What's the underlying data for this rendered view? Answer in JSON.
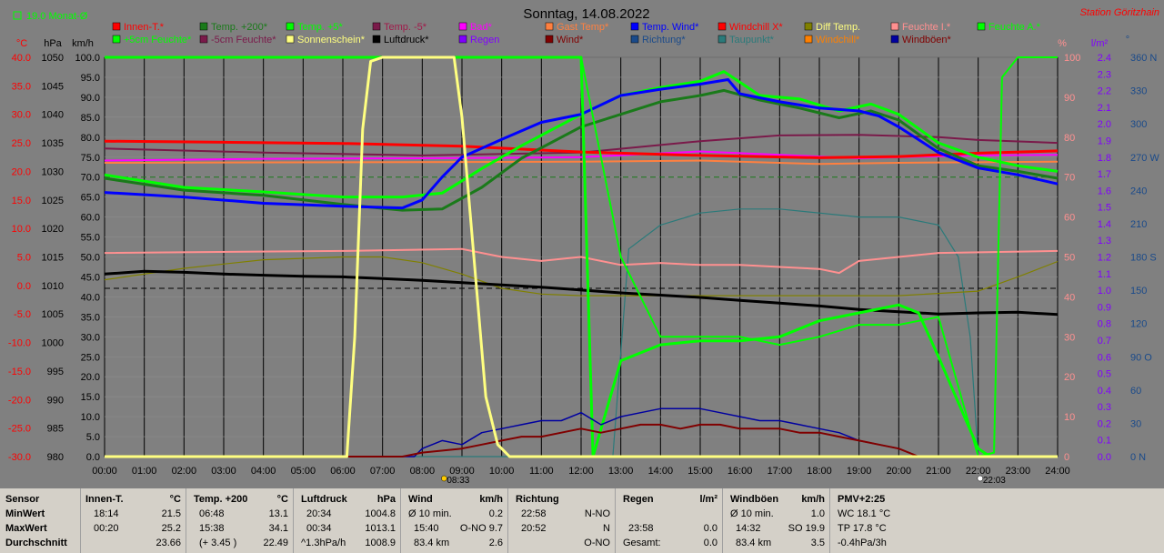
{
  "header": {
    "title": "Sonntag, 14.08.2022",
    "station": "Station Göritzhain",
    "monthly": "19.0 Monat-Ø"
  },
  "colors": {
    "bg": "#808080",
    "innen": "#ff0000",
    "temp200": "#1a7a1a",
    "temp5": "#00ff00",
    "tempm5": "#7a1a4a",
    "bad": "#ff00ff",
    "gast": "#ff8040",
    "tempwind": "#0000ff",
    "windchillx": "#ff0000",
    "diff": "#808000",
    "feuchtei": "#ff9090",
    "feuchtea": "#00ff00",
    "feuchte5": "#00ff00",
    "feuchtem5": "#7a1a4a",
    "sonne": "#ffff80",
    "luftdruck": "#000000",
    "regen": "#8000ff",
    "wind": "#800000",
    "richtung": "#1a4a8a",
    "taupunkt": "#2a7a7a",
    "windchill": "#ff8000",
    "windboeen": "#0000a0"
  },
  "legend": [
    [
      "Innen-T.*",
      "Temp. +200*",
      "Temp. +5*",
      "Temp. -5*",
      "Bad*",
      "Gast Temp*",
      "Temp. Wind*",
      "Windchill X*",
      "Diff Temp.",
      "Feuchte I.*",
      "Feuchte A.*"
    ],
    [
      "+5cm Feuchte*",
      "-5cm Feuchte*",
      "Sonnenschein*",
      "Luftdruck*",
      "Regen",
      "Wind*",
      "Richtung*",
      "Taupunkt*",
      "Windchill*",
      "Windböen*"
    ]
  ],
  "axes": {
    "units_left": [
      "°C",
      "hPa",
      "km/h"
    ],
    "units_right": [
      "%",
      "l/m²",
      "°"
    ],
    "temp": [
      "40.0",
      "35.0",
      "30.0",
      "25.0",
      "20.0",
      "15.0",
      "10.0",
      "5.0",
      "0.0",
      "-5.0",
      "-10.0",
      "-15.0",
      "-20.0",
      "-25.0",
      "-30.0"
    ],
    "hpa": [
      "1050",
      "1045",
      "1040",
      "1035",
      "1030",
      "1025",
      "1020",
      "1015",
      "1010",
      "1005",
      "1000",
      "995",
      "990",
      "985",
      "980"
    ],
    "kmh": [
      "100.0",
      "95.0",
      "90.0",
      "85.0",
      "80.0",
      "75.0",
      "70.0",
      "65.0",
      "60.0",
      "55.0",
      "50.0",
      "45.0",
      "40.0",
      "35.0",
      "30.0",
      "25.0",
      "20.0",
      "15.0",
      "10.0",
      "5.0",
      "0.0"
    ],
    "pct": [
      "100",
      "90",
      "80",
      "70",
      "60",
      "50",
      "40",
      "30",
      "20",
      "10",
      "0"
    ],
    "rain": [
      "2.4",
      "2.3",
      "2.2",
      "2.1",
      "2.0",
      "1.9",
      "1.8",
      "1.7",
      "1.6",
      "1.5",
      "1.4",
      "1.3",
      "1.2",
      "1.1",
      "1.0",
      "0.9",
      "0.8",
      "0.7",
      "0.6",
      "0.5",
      "0.4",
      "0.3",
      "0.2",
      "0.1",
      "0.0"
    ],
    "deg": [
      "360 N",
      "330",
      "300",
      "270 W",
      "240",
      "210",
      "180 S",
      "150",
      "120",
      "90 O",
      "60",
      "30",
      "0 N"
    ],
    "time": [
      "00:00",
      "01:00",
      "02:00",
      "03:00",
      "04:00",
      "05:00",
      "06:00",
      "07:00",
      "08:00",
      "09:00",
      "10:00",
      "11:00",
      "12:00",
      "13:00",
      "14:00",
      "15:00",
      "16:00",
      "17:00",
      "18:00",
      "19:00",
      "20:00",
      "21:00",
      "22:00",
      "23:00",
      "24:00"
    ],
    "sunrise": "08:33",
    "sunset": "22:03"
  },
  "chart_data": {
    "type": "line",
    "title": "Sonntag, 14.08.2022",
    "x_unit": "hours",
    "xlim": [
      0,
      24
    ],
    "ylim_kmh": [
      0,
      100
    ],
    "ylim_temp": [
      -30,
      40
    ],
    "ylim_hpa": [
      980,
      1050
    ],
    "ylim_pct": [
      0,
      100
    ],
    "series": [
      {
        "name": "Innen-T.*",
        "axis": "temp",
        "x": [
          0,
          3,
          6,
          9,
          12,
          15,
          18,
          20,
          22,
          24
        ],
        "values": [
          25.3,
          25.1,
          24.9,
          24.4,
          23.4,
          22.8,
          22.4,
          22.6,
          23.2,
          23.6
        ]
      },
      {
        "name": "Temp. +200*",
        "axis": "temp",
        "x": [
          0,
          2,
          4,
          6,
          7.5,
          8.5,
          9.5,
          10.5,
          12,
          13,
          14,
          15,
          15.6,
          16.5,
          17.5,
          18.5,
          19.3,
          20,
          21,
          22,
          23,
          24
        ],
        "values": [
          18.8,
          16.7,
          15.8,
          14.2,
          13.2,
          13.4,
          17.2,
          22.3,
          27.8,
          30.0,
          32.2,
          33.3,
          34.2,
          32.5,
          31.1,
          29.4,
          30.6,
          29.0,
          24.0,
          21.0,
          20.0,
          18.8
        ]
      },
      {
        "name": "Temp. +5*",
        "axis": "temp",
        "x": [
          0,
          2,
          4,
          6,
          7.5,
          8.5,
          9.5,
          10.5,
          12,
          13,
          14,
          15,
          15.6,
          16.5,
          17.5,
          18.5,
          19.3,
          20,
          21,
          22,
          23,
          24
        ],
        "values": [
          19.4,
          17.2,
          16.4,
          15.5,
          15.5,
          16.2,
          20.5,
          24.5,
          30.0,
          33.3,
          34.7,
          35.8,
          37.5,
          33.3,
          32.7,
          30.6,
          31.8,
          30.0,
          25.0,
          22.5,
          21.0,
          20.0
        ]
      },
      {
        "name": "Temp. -5*",
        "axis": "temp",
        "x": [
          0,
          4,
          8,
          12,
          15,
          17,
          19,
          21,
          22,
          24
        ],
        "values": [
          24.0,
          23.3,
          22.8,
          23.3,
          25.3,
          26.3,
          26.4,
          26.0,
          25.5,
          25.0
        ]
      },
      {
        "name": "Bad*",
        "axis": "temp",
        "x": [
          0,
          4,
          8,
          12,
          15,
          17,
          19,
          20,
          22,
          24
        ],
        "values": [
          21.9,
          22.2,
          22.3,
          22.5,
          23.5,
          22.9,
          22.3,
          22.5,
          22.8,
          22.9
        ]
      },
      {
        "name": "Gast Temp*",
        "axis": "temp",
        "x": [
          0,
          6,
          12,
          15,
          18,
          20,
          22,
          24
        ],
        "values": [
          21.5,
          21.6,
          21.7,
          21.9,
          21.3,
          21.5,
          21.6,
          21.7
        ]
      },
      {
        "name": "Temp. Wind*",
        "axis": "temp",
        "x": [
          0,
          2,
          4,
          6,
          7.5,
          8,
          8.5,
          9,
          10,
          11,
          12,
          13,
          14,
          15,
          15.7,
          16,
          17,
          18,
          19,
          19.5,
          20,
          21,
          22,
          23,
          24
        ],
        "values": [
          16.3,
          15.5,
          14.4,
          13.9,
          13.6,
          15.0,
          19.0,
          22.5,
          25.6,
          28.6,
          30.0,
          33.3,
          34.4,
          35.3,
          36.1,
          33.6,
          32.2,
          31.1,
          30.6,
          29.7,
          27.8,
          23.3,
          20.6,
          19.4,
          17.8
        ]
      },
      {
        "name": "Diff Temp.",
        "axis": "temp",
        "x": [
          0,
          2,
          4,
          6,
          7,
          8,
          9,
          10,
          11,
          12,
          14,
          16,
          18,
          20,
          22,
          23,
          24
        ],
        "values": [
          1.0,
          3.0,
          4.5,
          5.0,
          5.0,
          4.0,
          2.0,
          -0.5,
          -1.5,
          -1.8,
          -1.8,
          -1.8,
          -1.8,
          -1.8,
          -1.0,
          1.5,
          4.2
        ]
      },
      {
        "name": "Feuchte I.*",
        "axis": "pct",
        "x": [
          0,
          6,
          9,
          10,
          11,
          12,
          13,
          14,
          15,
          16,
          17,
          18,
          18.5,
          19,
          20,
          21,
          24
        ],
        "values": [
          51,
          51.5,
          52,
          50,
          49,
          50,
          48,
          48.5,
          48,
          48,
          47.5,
          47,
          46,
          49,
          50,
          51,
          51.5
        ]
      },
      {
        "name": "Feuchte A.*",
        "axis": "pct",
        "x": [
          0,
          12,
          13,
          14,
          15,
          16,
          17,
          18,
          19,
          20,
          21,
          22,
          22.4,
          22.6,
          23,
          24
        ],
        "values": [
          100,
          100,
          50,
          30,
          30,
          30,
          28,
          30,
          33,
          33,
          35,
          0,
          1,
          95,
          100,
          100
        ]
      },
      {
        "name": "+5cm Feuchte*",
        "axis": "pct",
        "x": [
          0,
          12,
          12.3,
          13,
          14,
          15,
          16,
          17,
          18,
          19,
          20,
          20.5,
          21,
          22,
          22.3
        ],
        "values": [
          100,
          100,
          0,
          24,
          28,
          29,
          29,
          30,
          34,
          36,
          38,
          36,
          25,
          2,
          0
        ]
      },
      {
        "name": "Luftdruck*",
        "axis": "hpa",
        "x": [
          0,
          1,
          2,
          3,
          4,
          5,
          6,
          7,
          8,
          9,
          10,
          11,
          12,
          13,
          14,
          15,
          16,
          17,
          18,
          19,
          20,
          21,
          22,
          23,
          24
        ],
        "values": [
          1012.0,
          1012.5,
          1012.3,
          1012.0,
          1011.8,
          1011.6,
          1011.5,
          1011.2,
          1010.9,
          1010.5,
          1010.1,
          1009.7,
          1009.2,
          1008.7,
          1008.3,
          1007.9,
          1007.4,
          1006.9,
          1006.4,
          1005.8,
          1005.4,
          1005.0,
          1005.2,
          1005.3,
          1004.9
        ]
      },
      {
        "name": "Sonnenschein*",
        "axis": "kmh",
        "x": [
          0,
          6.1,
          6.3,
          6.5,
          6.7,
          7.0,
          8.0,
          8.8,
          9.0,
          9.3,
          9.6,
          9.9,
          10.2,
          24
        ],
        "values": [
          0,
          0,
          30,
          82,
          99,
          100,
          100,
          100,
          85,
          50,
          15,
          3,
          0,
          0
        ]
      },
      {
        "name": "Wind*",
        "axis": "kmh",
        "x": [
          0,
          7.5,
          8,
          9,
          9.5,
          10,
          10.5,
          11,
          11.5,
          12,
          12.5,
          13,
          13.5,
          14,
          14.5,
          15,
          15.5,
          16,
          16.5,
          17,
          17.5,
          18,
          18.5,
          19,
          19.5,
          20,
          20.5,
          24
        ],
        "values": [
          0,
          0,
          1,
          2,
          3,
          4,
          5,
          5,
          6,
          7,
          6,
          7,
          8,
          8,
          7,
          8,
          8,
          7,
          7,
          7,
          6,
          6,
          5,
          4,
          3,
          2,
          0,
          0
        ]
      },
      {
        "name": "Windböen*",
        "axis": "kmh",
        "x": [
          0,
          7.8,
          8,
          8.5,
          9,
          9.5,
          10,
          10.5,
          11,
          11.5,
          12,
          12.5,
          13,
          13.5,
          14,
          14.5,
          15,
          15.5,
          16,
          16.5,
          17,
          17.5,
          18,
          18.5,
          19,
          19.5,
          20,
          20.5,
          24
        ],
        "values": [
          0,
          0,
          2,
          4,
          3,
          6,
          7,
          8,
          9,
          9,
          11,
          8,
          10,
          11,
          12,
          12,
          12,
          11,
          10,
          9,
          9,
          8,
          7,
          6,
          4,
          3,
          2,
          0,
          0
        ]
      },
      {
        "name": "Taupunkt*",
        "axis": "pct",
        "x": [
          0,
          12.8,
          13.2,
          14,
          15,
          16,
          17,
          18,
          19,
          20,
          21,
          21.5,
          21.8,
          22,
          24
        ],
        "values": [
          0,
          0,
          52,
          58,
          61,
          62,
          62,
          61,
          60,
          60,
          58,
          50,
          30,
          0,
          0
        ]
      }
    ],
    "ref_lines": [
      {
        "name": "monthly-avg",
        "axis": "temp",
        "value": 19.0
      },
      {
        "name": "pressure-ref",
        "axis": "hpa",
        "value": 1009.5
      }
    ]
  },
  "stats": {
    "rows": [
      "Sensor",
      "MinWert",
      "MaxWert",
      "Durchschnitt"
    ],
    "innen": {
      "head": "Innen-T.",
      "unit": "°C",
      "min_t": "18:14",
      "min": "21.5",
      "max_t": "00:20",
      "max": "25.2",
      "avg": "23.66"
    },
    "temp": {
      "head": "Temp. +200",
      "unit": "°C",
      "min_t": "06:48",
      "min": "13.1",
      "max_t": "15:38",
      "max": "34.1",
      "avg_note": "(+ 3.45 )",
      "avg": "22.49"
    },
    "luft": {
      "head": "Luftdruck",
      "unit": "hPa",
      "min_t": "20:34",
      "min": "1004.8",
      "max_t": "00:34",
      "max": "1013.1",
      "avg_note": "^1.3hPa/h",
      "avg": "1008.9"
    },
    "wind": {
      "head": "Wind",
      "unit": "km/h",
      "r1a": "Ø 10 min.",
      "r1b": "0.2",
      "r2a": "15:40",
      "r2b": "O-NO 9.7",
      "r3a": "83.4 km",
      "r3b": "2.6"
    },
    "richtung": {
      "head": "Richtung",
      "r1a": "22:58",
      "r1b": "N-NO",
      "r2a": "20:52",
      "r2b": "N",
      "r3b": "O-NO"
    },
    "regen": {
      "head": "Regen",
      "unit": "l/m²",
      "r2a": "23:58",
      "r2b": "0.0",
      "r3a": "Gesamt:",
      "r3b": "0.0"
    },
    "boeen": {
      "head": "Windböen",
      "unit": "km/h",
      "r1a": "Ø 10 min.",
      "r1b": "1.0",
      "r2a": "14:32",
      "r2b": "SO 19.9",
      "r3a": "83.4 km",
      "r3b": "3.5"
    },
    "pmv": {
      "head": "PMV+2:25",
      "r1": "WC 18.1 °C",
      "r2": "TP 17.8 °C",
      "r3": "-0.4hPa/3h"
    }
  }
}
